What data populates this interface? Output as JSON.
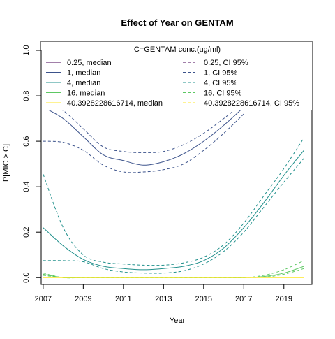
{
  "chart_data": {
    "type": "line",
    "title": "Effect of Year on GENTAM",
    "xlabel": "Year",
    "ylabel": "P[MIC > C]",
    "xlim": [
      2006.9,
      2020.4
    ],
    "ylim": [
      -0.03,
      1.04
    ],
    "x_ticks": [
      "2007",
      "2009",
      "2011",
      "2013",
      "2015",
      "2017",
      "2019"
    ],
    "y_ticks": [
      "0.0",
      "0.2",
      "0.4",
      "0.6",
      "0.8",
      "1.0"
    ],
    "grid": false,
    "legend": {
      "title": "C=GENTAM conc.(ug/ml)",
      "placement": "top",
      "entries": [
        {
          "label": "0.25, median",
          "color": "#440154",
          "dash": false
        },
        {
          "label": "0.25, CI 95%",
          "color": "#440154",
          "dash": true
        },
        {
          "label": "1, median",
          "color": "#3B528B",
          "dash": false
        },
        {
          "label": "1, CI 95%",
          "color": "#3B528B",
          "dash": true
        },
        {
          "label": "4, median",
          "color": "#21908C",
          "dash": false
        },
        {
          "label": "4, CI 95%",
          "color": "#21908C",
          "dash": true
        },
        {
          "label": "16, median",
          "color": "#5DC863",
          "dash": false
        },
        {
          "label": "16, CI 95%",
          "color": "#5DC863",
          "dash": true
        },
        {
          "label": "40.3928228616714, median",
          "color": "#FDE725",
          "dash": false
        },
        {
          "label": "40.3928228616714, CI 95%",
          "color": "#FDE725",
          "dash": true
        }
      ]
    },
    "x": [
      2007,
      2008,
      2009,
      2010,
      2011,
      2012,
      2013,
      2014,
      2015,
      2016,
      2017,
      2018,
      2019,
      2020
    ],
    "series": [
      {
        "name": "1, median",
        "color": "#3B528B",
        "dash": false,
        "values": [
          0.75,
          0.7,
          0.62,
          0.54,
          0.515,
          0.495,
          0.51,
          0.545,
          0.6,
          0.67,
          0.75,
          null,
          null,
          null
        ]
      },
      {
        "name": "1, CI 95%",
        "color": "#3B528B",
        "dash": true,
        "values": [
          0.78,
          0.735,
          0.655,
          0.575,
          0.555,
          0.55,
          0.555,
          0.585,
          0.635,
          0.7,
          0.77,
          null,
          null,
          null
        ]
      },
      {
        "name": "1, CI 95%",
        "color": "#3B528B",
        "dash": true,
        "values": [
          0.6,
          0.595,
          0.56,
          0.495,
          0.465,
          0.465,
          0.475,
          0.5,
          0.56,
          0.635,
          0.72,
          null,
          null,
          null
        ]
      },
      {
        "name": "4, median",
        "color": "#21908C",
        "dash": false,
        "values": [
          0.22,
          0.14,
          0.08,
          0.05,
          0.04,
          0.035,
          0.04,
          0.05,
          0.075,
          0.13,
          0.22,
          0.33,
          0.45,
          0.56
        ]
      },
      {
        "name": "4, CI 95%",
        "color": "#21908C",
        "dash": true,
        "values": [
          0.455,
          0.22,
          0.1,
          0.068,
          0.06,
          0.055,
          0.055,
          0.065,
          0.09,
          0.145,
          0.24,
          0.36,
          0.48,
          0.615
        ]
      },
      {
        "name": "4, CI 95%",
        "color": "#21908C",
        "dash": true,
        "values": [
          0.075,
          0.075,
          0.07,
          0.04,
          0.025,
          0.02,
          0.02,
          0.03,
          0.06,
          0.115,
          0.2,
          0.31,
          0.42,
          0.525
        ]
      },
      {
        "name": "16, median",
        "color": "#5DC863",
        "dash": false,
        "values": [
          0.015,
          0.0,
          0.0,
          0.0,
          0.0,
          0.0,
          0.0,
          0.0,
          0.0,
          0.0,
          0.0,
          0.005,
          0.02,
          0.05
        ]
      },
      {
        "name": "16, CI 95%",
        "color": "#5DC863",
        "dash": true,
        "values": [
          0.02,
          0.0,
          0.0,
          0.0,
          0.0,
          0.0,
          0.0,
          0.0,
          0.0,
          0.0,
          0.0,
          0.01,
          0.035,
          0.075
        ]
      },
      {
        "name": "16, CI 95%",
        "color": "#5DC863",
        "dash": true,
        "values": [
          0.01,
          0.0,
          0.0,
          0.0,
          0.0,
          0.0,
          0.0,
          0.0,
          0.0,
          0.0,
          0.0,
          0.002,
          0.015,
          0.04
        ]
      },
      {
        "name": "40.3928228616714, median",
        "color": "#FDE725",
        "dash": false,
        "values": [
          0.0,
          0.0,
          0.0,
          0.0,
          0.0,
          0.0,
          0.0,
          0.0,
          0.0,
          0.0,
          0.0,
          0.0,
          0.0,
          0.0
        ]
      }
    ]
  }
}
